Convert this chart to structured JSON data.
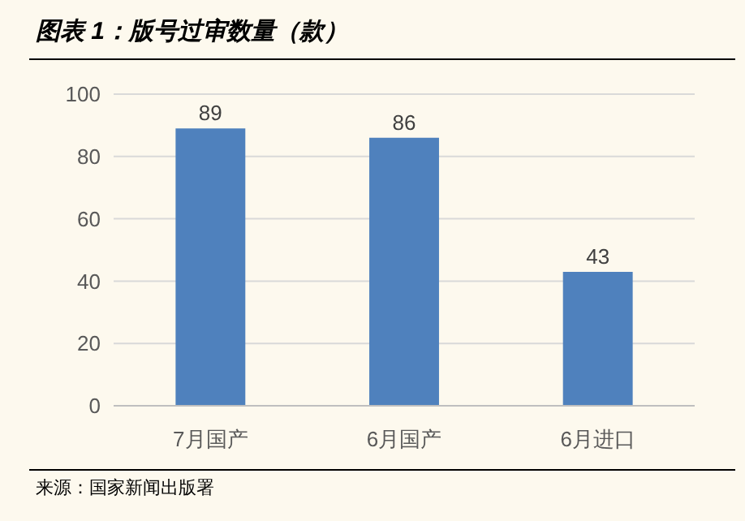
{
  "chart_data": {
    "type": "bar",
    "title": "图表 1：版号过审数量（款）",
    "categories": [
      "7月国产",
      "6月国产",
      "6月进口"
    ],
    "values": [
      89,
      86,
      43
    ],
    "color": "#4f81bd",
    "ylim": [
      0,
      100
    ],
    "yticks": [
      0,
      20,
      40,
      60,
      80,
      100
    ],
    "grid": "y",
    "data_labels": true,
    "annotations": [
      "来源：国家新闻出版署"
    ]
  }
}
